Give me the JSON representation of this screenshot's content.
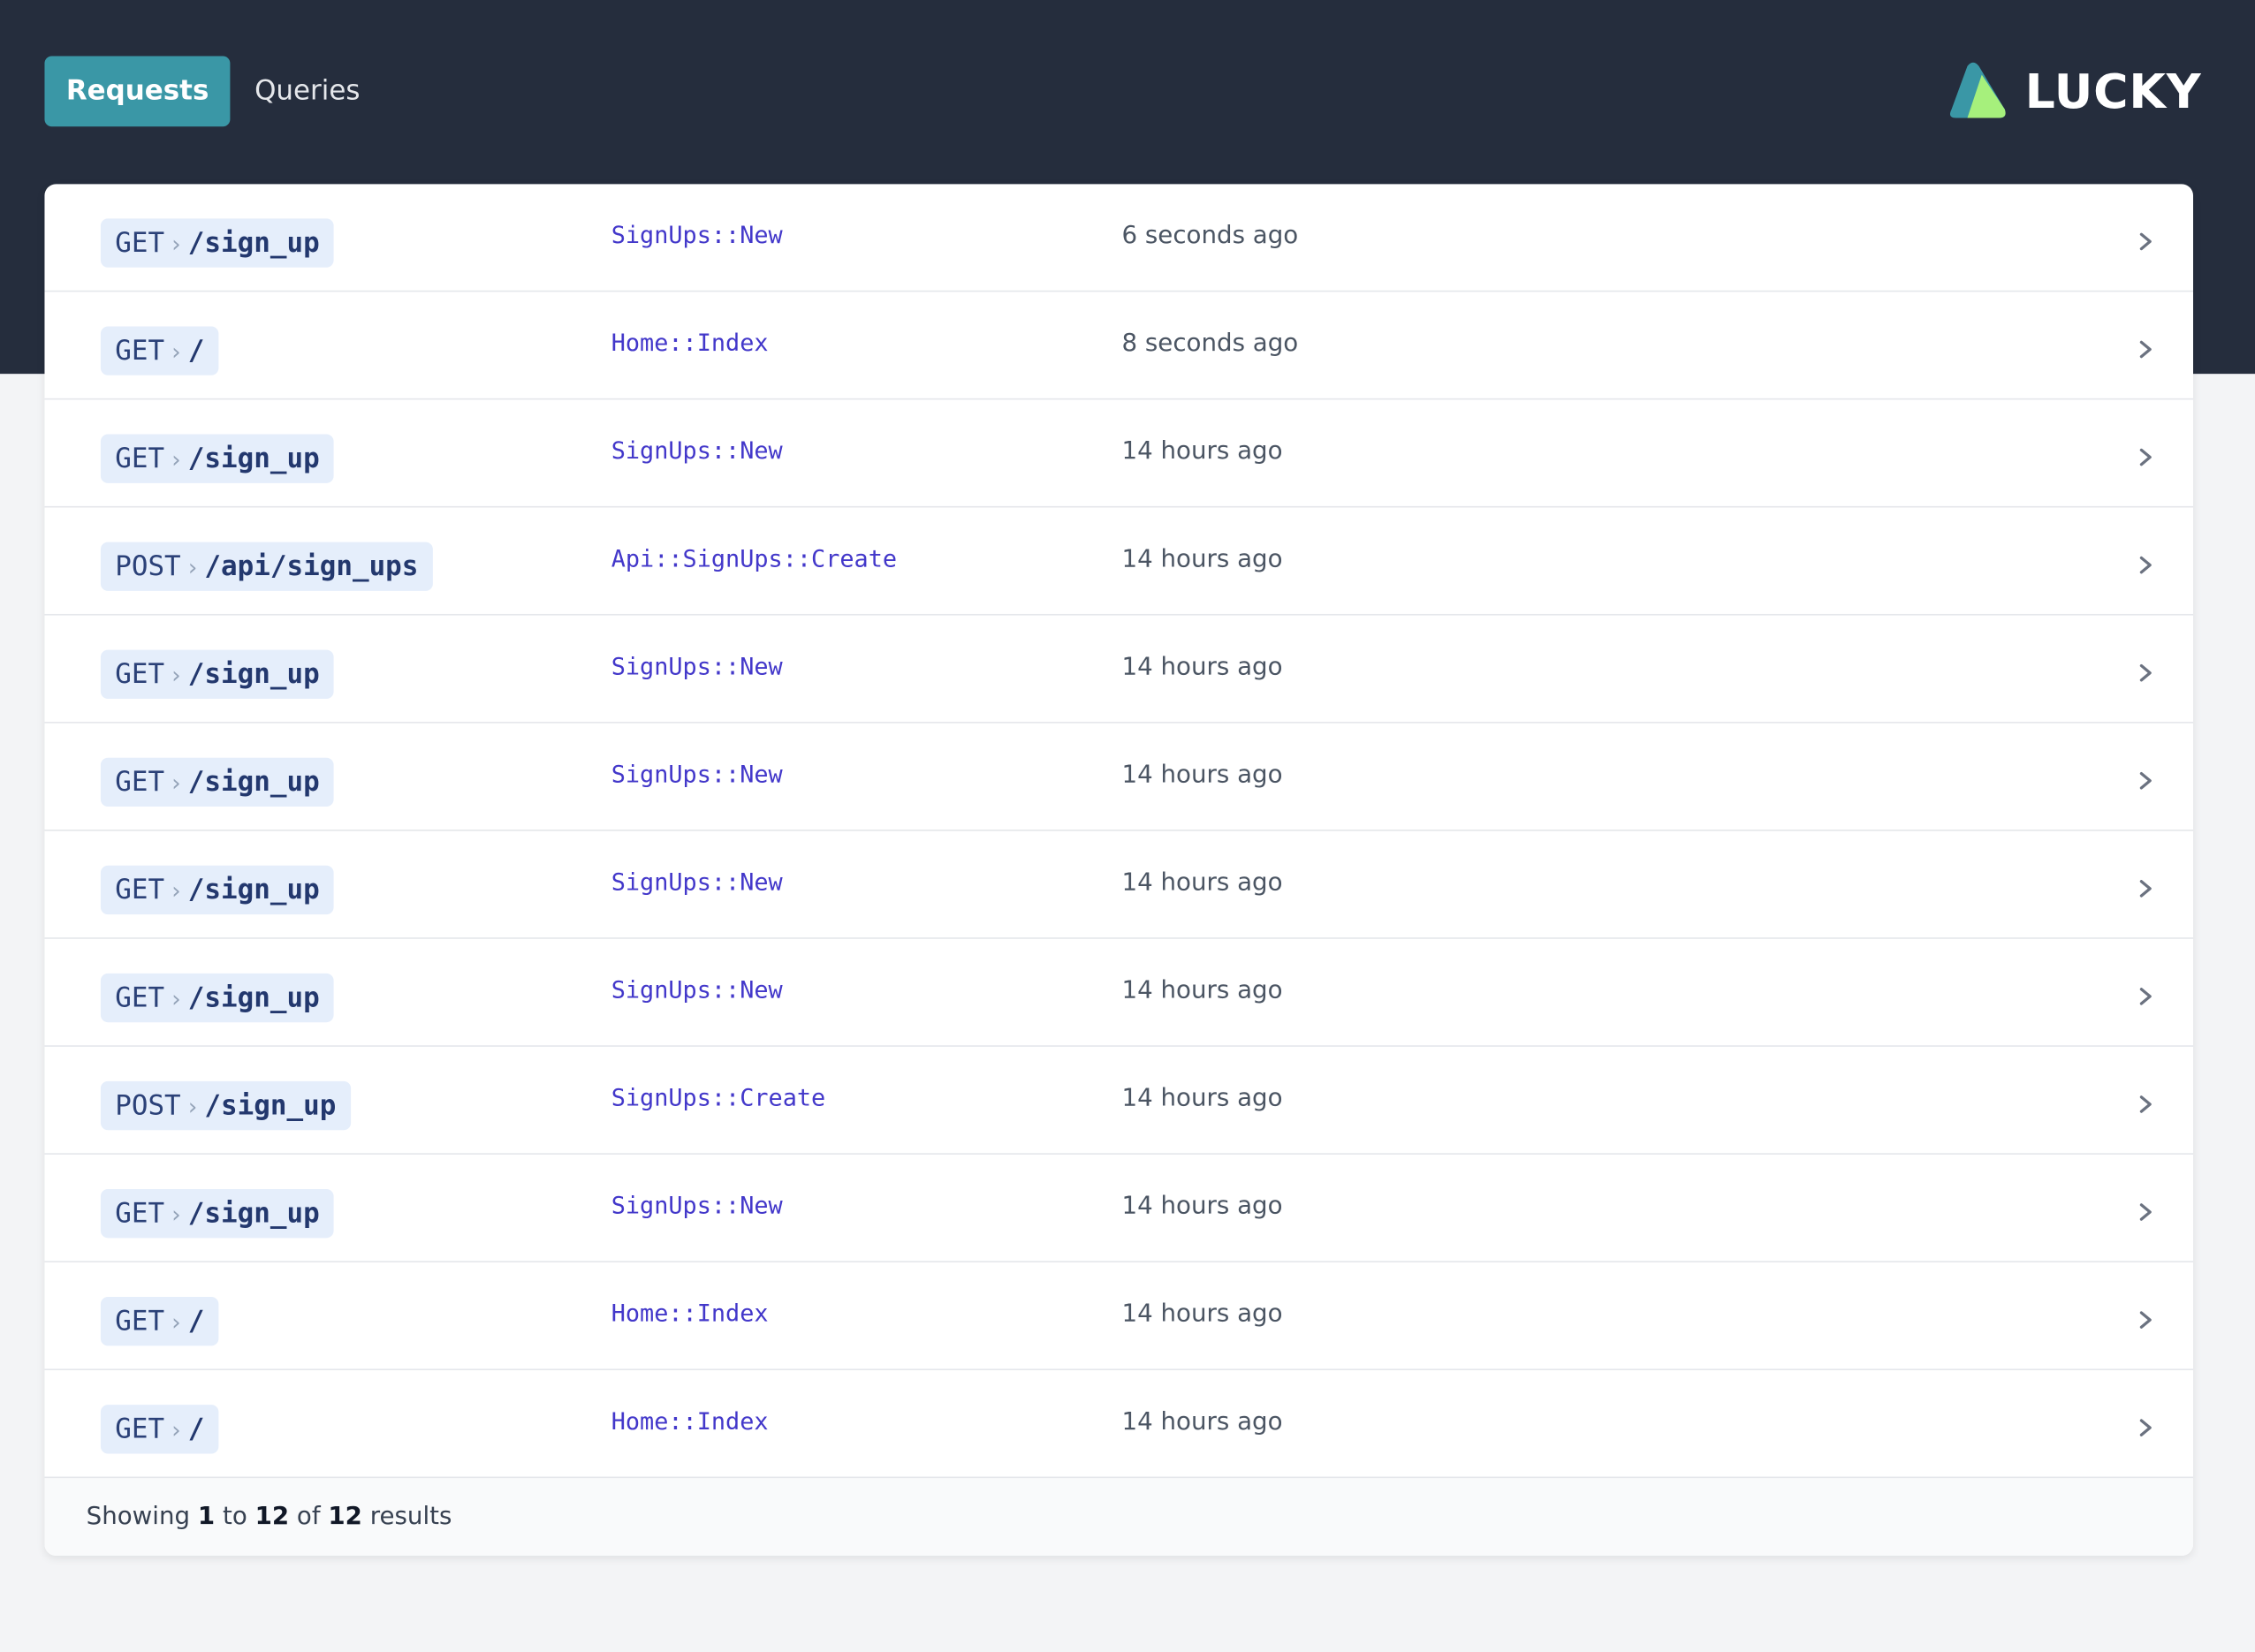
{
  "nav": {
    "tabs": [
      "Requests",
      "Queries"
    ]
  },
  "logo": {
    "text": "LUCKY"
  },
  "requests": [
    {
      "method": "GET",
      "path": "/sign_up",
      "action": "SignUps::New",
      "time": "6 seconds ago"
    },
    {
      "method": "GET",
      "path": "/",
      "action": "Home::Index",
      "time": "8 seconds ago"
    },
    {
      "method": "GET",
      "path": "/sign_up",
      "action": "SignUps::New",
      "time": "14 hours ago"
    },
    {
      "method": "POST",
      "path": "/api/sign_ups",
      "action": "Api::SignUps::Create",
      "time": "14 hours ago"
    },
    {
      "method": "GET",
      "path": "/sign_up",
      "action": "SignUps::New",
      "time": "14 hours ago"
    },
    {
      "method": "GET",
      "path": "/sign_up",
      "action": "SignUps::New",
      "time": "14 hours ago"
    },
    {
      "method": "GET",
      "path": "/sign_up",
      "action": "SignUps::New",
      "time": "14 hours ago"
    },
    {
      "method": "GET",
      "path": "/sign_up",
      "action": "SignUps::New",
      "time": "14 hours ago"
    },
    {
      "method": "POST",
      "path": "/sign_up",
      "action": "SignUps::Create",
      "time": "14 hours ago"
    },
    {
      "method": "GET",
      "path": "/sign_up",
      "action": "SignUps::New",
      "time": "14 hours ago"
    },
    {
      "method": "GET",
      "path": "/",
      "action": "Home::Index",
      "time": "14 hours ago"
    },
    {
      "method": "GET",
      "path": "/",
      "action": "Home::Index",
      "time": "14 hours ago"
    }
  ],
  "footer": {
    "text_1": "Showing",
    "start": 1,
    "text_2": "to",
    "end": 12,
    "text_3": "of",
    "total": 12,
    "text_4": "results"
  }
}
